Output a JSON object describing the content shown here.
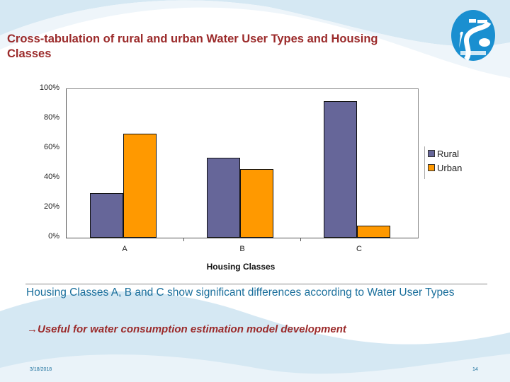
{
  "slide": {
    "title": "Cross-tabulation of rural and urban Water User Types and Housing Classes",
    "summary": "Housing Classes A, B and C show significant differences according to Water User Types",
    "conclusion_arrow": "→",
    "conclusion": "Useful for water consumption estimation model development",
    "footer": {
      "date": "3/18/2018",
      "page_number": "14"
    },
    "logo_icon": "river-heron-logo-icon"
  },
  "colors": {
    "title": "#9b2a2a",
    "body_text": "#1a6f9c",
    "rural": "#666699",
    "urban": "#ff9900",
    "background_wave": "#d5e8f3"
  },
  "chart_data": {
    "type": "bar",
    "title": "",
    "xlabel": "Housing Classes",
    "ylabel": "",
    "categories": [
      "A",
      "B",
      "C"
    ],
    "series": [
      {
        "name": "Rural",
        "color": "#666699",
        "values": [
          30,
          54,
          92
        ]
      },
      {
        "name": "Urban",
        "color": "#ff9900",
        "values": [
          70,
          46,
          8
        ]
      }
    ],
    "yticks": [
      "0%",
      "20%",
      "40%",
      "60%",
      "80%",
      "100%"
    ],
    "ylim": [
      0,
      100
    ],
    "value_format": "percent",
    "grid": false,
    "legend_position": "right"
  }
}
